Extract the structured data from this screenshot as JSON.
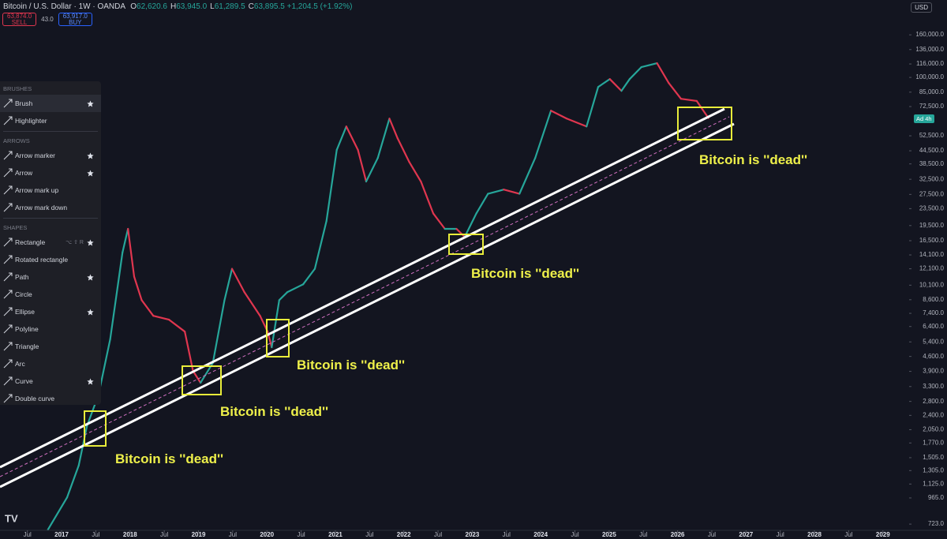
{
  "header": {
    "title": "Bitcoin / U.S. Dollar · 1W · OANDA",
    "ohlc": [
      {
        "label": "O",
        "value": "62,620.6"
      },
      {
        "label": "H",
        "value": "63,945.0"
      },
      {
        "label": "L",
        "value": "61,289.5"
      },
      {
        "label": "C",
        "value": "63,895.5"
      }
    ],
    "change": "+1,204.5 (+1.92%)"
  },
  "trade": {
    "sell_price": "63,874.0",
    "sell_label": "SELL",
    "spread": "43.0",
    "buy_price": "63,917.0",
    "buy_label": "BUY"
  },
  "currency": "USD",
  "price_badge": "Ad 4h",
  "toolbar": {
    "sections": [
      {
        "title": "BRUSHES",
        "items": [
          {
            "label": "Brush",
            "starred": true
          },
          {
            "label": "Highlighter",
            "starred": false
          }
        ]
      },
      {
        "title": "ARROWS",
        "items": [
          {
            "label": "Arrow marker",
            "starred": true
          },
          {
            "label": "Arrow",
            "starred": true
          },
          {
            "label": "Arrow mark up",
            "starred": false
          },
          {
            "label": "Arrow mark down",
            "starred": false
          }
        ]
      },
      {
        "title": "SHAPES",
        "items": [
          {
            "label": "Rectangle",
            "starred": true,
            "shortcut": "⌥ ⇧ R"
          },
          {
            "label": "Rotated rectangle",
            "starred": false
          },
          {
            "label": "Path",
            "starred": true
          },
          {
            "label": "Circle",
            "starred": false
          },
          {
            "label": "Ellipse",
            "starred": true
          },
          {
            "label": "Polyline",
            "starred": false
          },
          {
            "label": "Triangle",
            "starred": false
          },
          {
            "label": "Arc",
            "starred": false
          },
          {
            "label": "Curve",
            "starred": true
          },
          {
            "label": "Double curve",
            "starred": false
          }
        ]
      }
    ]
  },
  "annotations": [
    "Bitcoin is ''dead''",
    "Bitcoin is ''dead''",
    "Bitcoin is ''dead''",
    "Bitcoin is ''dead''",
    "Bitcoin is ''dead''"
  ],
  "chart_data": {
    "type": "line",
    "log_y": true,
    "up_color": "#26a69a",
    "down_color": "#e0364f",
    "x": [
      2016.8,
      2017.08,
      2017.25,
      2017.37,
      2017.54,
      2017.71,
      2017.89,
      2017.97,
      2018.06,
      2018.17,
      2018.34,
      2018.57,
      2018.8,
      2018.92,
      2019.03,
      2019.21,
      2019.38,
      2019.49,
      2019.67,
      2019.9,
      2020.01,
      2020.07,
      2020.18,
      2020.3,
      2020.53,
      2020.7,
      2020.87,
      2021.02,
      2021.16,
      2021.33,
      2021.45,
      2021.62,
      2021.79,
      2021.91,
      2022.08,
      2022.25,
      2022.43,
      2022.6,
      2022.77,
      2022.89,
      2023.06,
      2023.23,
      2023.46,
      2023.69,
      2023.92,
      2024.15,
      2024.38,
      2024.67,
      2024.84,
      2025.01,
      2025.18,
      2025.3,
      2025.47,
      2025.7,
      2025.87,
      2026.05,
      2026.28,
      2026.45
    ],
    "values": [
      680,
      970,
      1380,
      2130,
      3020,
      5560,
      14500,
      18800,
      11100,
      8560,
      7200,
      6900,
      6050,
      3920,
      3440,
      4280,
      8560,
      12100,
      9360,
      7200,
      6050,
      5090,
      8560,
      9360,
      10200,
      12100,
      20500,
      44900,
      58200,
      44900,
      31700,
      41100,
      63500,
      51000,
      39300,
      31700,
      22300,
      18800,
      18800,
      17200,
      22300,
      27700,
      29000,
      27700,
      41100,
      69300,
      63500,
      58200,
      90000,
      98200,
      86200,
      98200,
      112000,
      117000,
      94100,
      79000,
      77100,
      63895.5
    ],
    "xlim": [
      2016.1,
      2029.36
    ],
    "ylim": [
      675,
      235000
    ],
    "xticks": [
      {
        "value": 2016.5,
        "label": "Jul"
      },
      2017,
      {
        "value": 2017.5,
        "label": "Jul"
      },
      2018,
      {
        "value": 2018.5,
        "label": "Jul"
      },
      2019,
      {
        "value": 2019.5,
        "label": "Jul"
      },
      2020,
      {
        "value": 2020.5,
        "label": "Jul"
      },
      2021,
      {
        "value": 2021.5,
        "label": "Jul"
      },
      2022,
      {
        "value": 2022.5,
        "label": "Jul"
      },
      2023,
      {
        "value": 2023.5,
        "label": "Jul"
      },
      2024,
      {
        "value": 2024.5,
        "label": "Jul"
      },
      2025,
      {
        "value": 2025.5,
        "label": "Jul"
      },
      2026,
      {
        "value": 2026.5,
        "label": "Jul"
      },
      2027,
      {
        "value": 2027.5,
        "label": "Jul"
      },
      2028,
      {
        "value": 2028.5,
        "label": "Jul"
      },
      2029
    ],
    "yticks": [
      {
        "value": 160000,
        "label": "160,000.0"
      },
      {
        "value": 136000,
        "label": "136,000.0"
      },
      {
        "value": 116000,
        "label": "116,000.0"
      },
      {
        "value": 100000,
        "label": "100,000.0"
      },
      {
        "value": 85000,
        "label": "85,000.0"
      },
      {
        "value": 72500,
        "label": "72,500.0"
      },
      {
        "value": 52500,
        "label": "52,500.0"
      },
      {
        "value": 44500,
        "label": "44,500.0"
      },
      {
        "value": 38500,
        "label": "38,500.0"
      },
      {
        "value": 32500,
        "label": "32,500.0"
      },
      {
        "value": 27500,
        "label": "27,500.0"
      },
      {
        "value": 23500,
        "label": "23,500.0"
      },
      {
        "value": 19500,
        "label": "19,500.0"
      },
      {
        "value": 16500,
        "label": "16,500.0"
      },
      {
        "value": 14100,
        "label": "14,100.0"
      },
      {
        "value": 12100,
        "label": "12,100.0"
      },
      {
        "value": 10100,
        "label": "10,100.0"
      },
      {
        "value": 8600,
        "label": "8,600.0"
      },
      {
        "value": 7400,
        "label": "7,400.0"
      },
      {
        "value": 6400,
        "label": "6,400.0"
      },
      {
        "value": 5400,
        "label": "5,400.0"
      },
      {
        "value": 4600,
        "label": "4,600.0"
      },
      {
        "value": 3900,
        "label": "3,900.0"
      },
      {
        "value": 3300,
        "label": "3,300.0"
      },
      {
        "value": 2800,
        "label": "2,800.0"
      },
      {
        "value": 2400,
        "label": "2,400.0"
      },
      {
        "value": 2050,
        "label": "2,050.0"
      },
      {
        "value": 1770,
        "label": "1,770.0"
      },
      {
        "value": 1505,
        "label": "1,505.0"
      },
      {
        "value": 1305,
        "label": "1,305.0"
      },
      {
        "value": 1125,
        "label": "1,125.0"
      },
      {
        "value": 965,
        "label": "965.0"
      },
      {
        "value": 723,
        "label": "723.0"
      }
    ]
  }
}
